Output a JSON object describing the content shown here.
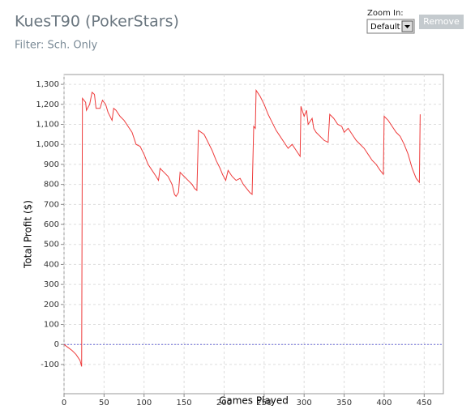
{
  "chart_data": {
    "type": "line",
    "title": "KuesT90 (PokerStars)",
    "subtitle": "Filter: Sch. Only",
    "x_label": "Games Played",
    "y_label": "Total Profit ($)",
    "x": [
      0,
      5,
      10,
      15,
      20,
      22,
      23,
      27,
      28,
      32,
      35,
      38,
      40,
      45,
      48,
      52,
      55,
      60,
      62,
      65,
      70,
      75,
      80,
      85,
      90,
      95,
      100,
      105,
      110,
      115,
      118,
      120,
      125,
      130,
      135,
      138,
      140,
      143,
      145,
      150,
      155,
      160,
      163,
      166,
      168,
      175,
      180,
      185,
      190,
      195,
      198,
      202,
      205,
      210,
      215,
      220,
      224,
      228,
      232,
      235,
      237,
      239,
      240,
      245,
      250,
      255,
      260,
      265,
      270,
      275,
      280,
      285,
      290,
      295,
      296,
      300,
      303,
      305,
      310,
      312,
      315,
      320,
      325,
      330,
      332,
      337,
      342,
      347,
      350,
      355,
      360,
      365,
      370,
      375,
      380,
      385,
      390,
      395,
      399,
      400,
      405,
      410,
      415,
      420,
      425,
      430,
      435,
      440,
      444,
      445
    ],
    "series": [
      {
        "name": "Total Profit",
        "color": "#ee3b3b",
        "values": [
          0,
          -15,
          -30,
          -50,
          -80,
          -110,
          1230,
          1210,
          1170,
          1200,
          1260,
          1250,
          1180,
          1180,
          1220,
          1200,
          1160,
          1120,
          1180,
          1170,
          1140,
          1120,
          1090,
          1060,
          1000,
          990,
          950,
          900,
          870,
          840,
          820,
          880,
          860,
          840,
          800,
          750,
          740,
          760,
          860,
          840,
          820,
          800,
          780,
          770,
          1070,
          1050,
          1010,
          970,
          920,
          880,
          850,
          820,
          870,
          840,
          820,
          830,
          800,
          780,
          760,
          750,
          1090,
          1080,
          1270,
          1240,
          1200,
          1150,
          1110,
          1070,
          1040,
          1010,
          980,
          1000,
          970,
          940,
          1190,
          1140,
          1170,
          1100,
          1130,
          1080,
          1060,
          1040,
          1020,
          1010,
          1150,
          1130,
          1100,
          1090,
          1060,
          1080,
          1050,
          1020,
          1000,
          980,
          950,
          920,
          900,
          870,
          850,
          1140,
          1120,
          1090,
          1060,
          1040,
          1000,
          950,
          880,
          830,
          810,
          1150
        ]
      }
    ],
    "hline": 0,
    "hline_color": "#6a6ad8",
    "xlim": [
      0,
      474
    ],
    "ylim": [
      -246,
      1349
    ],
    "xticks": [
      0,
      50,
      100,
      150,
      200,
      250,
      300,
      350,
      400,
      450
    ],
    "yticks": [
      -100,
      0,
      100,
      200,
      300,
      400,
      500,
      600,
      700,
      800,
      900,
      {
        "value": 1000,
        "label": "1,000"
      },
      {
        "value": 1100,
        "label": "1,100"
      },
      {
        "value": 1200,
        "label": "1,200"
      },
      {
        "value": 1300,
        "label": "1,300"
      }
    ],
    "grid": true
  },
  "ui": {
    "zoom_label": "Zoom In:",
    "zoom_option": "Default",
    "button": "Remove"
  }
}
